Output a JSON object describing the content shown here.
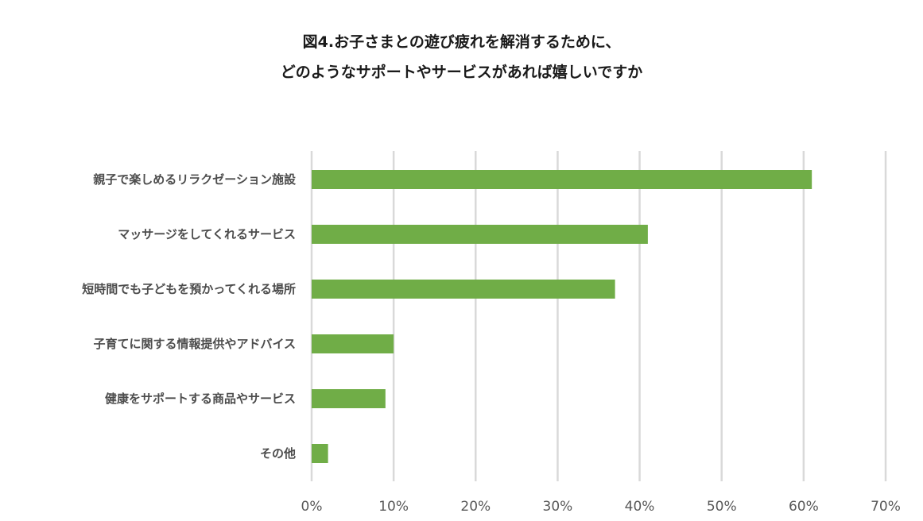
{
  "chart_data": {
    "type": "bar",
    "orientation": "horizontal",
    "title_lines": [
      "図4.お子さまとの遊び疲れを解消するために、",
      "どのようなサポートやサービスがあれば嬉しいですか"
    ],
    "categories": [
      "親子で楽しめるリラクゼーション施設",
      "マッサージをしてくれるサービス",
      "短時間でも子どもを預かってくれる場所",
      "子育てに関する情報提供やアドバイス",
      "健康をサポートする商品やサービス",
      "その他"
    ],
    "values": [
      0.61,
      0.41,
      0.37,
      0.1,
      0.09,
      0.02
    ],
    "xlim": [
      0,
      0.7
    ],
    "xticks": [
      0,
      0.1,
      0.2,
      0.3,
      0.4,
      0.5,
      0.6,
      0.7
    ],
    "xtick_labels": [
      "0%",
      "10%",
      "20%",
      "30%",
      "40%",
      "50%",
      "60%",
      "70%"
    ],
    "grid": "vertical",
    "legend": "none",
    "bar_color": "#70ad47",
    "grid_color": "#d9d9d9"
  }
}
